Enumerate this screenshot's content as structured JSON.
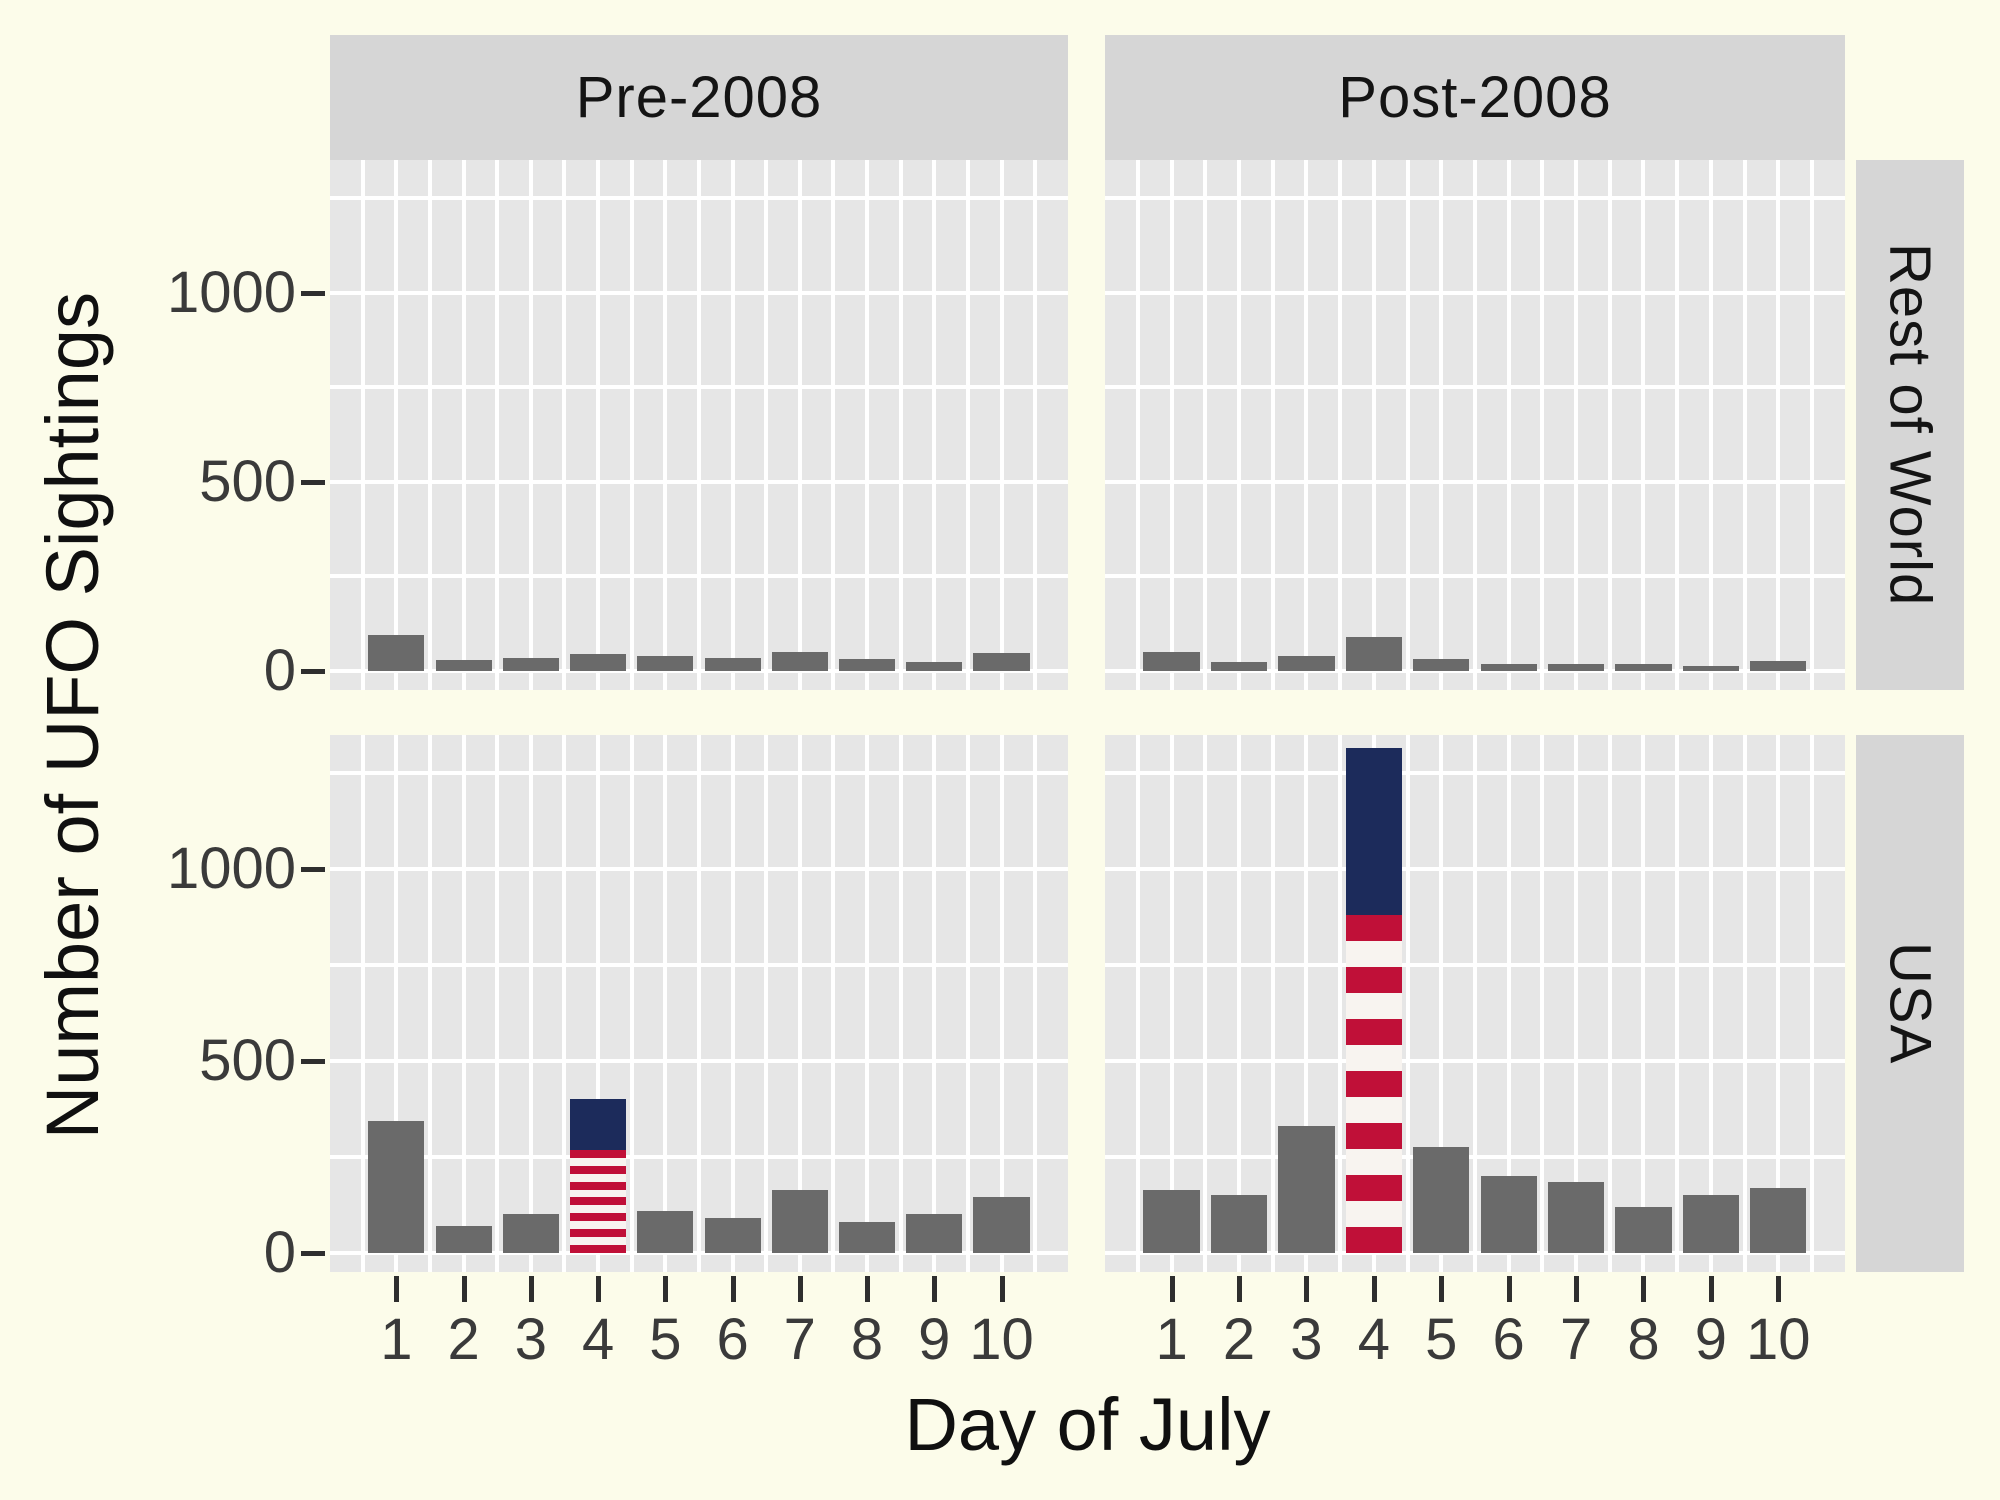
{
  "figure": {
    "background": "#FCFCEA"
  },
  "chart_data": {
    "type": "bar",
    "title": "",
    "xlabel": "Day of July",
    "ylabel": "Number of UFO Sightings",
    "x": [
      1,
      2,
      3,
      4,
      5,
      6,
      7,
      8,
      9,
      10
    ],
    "yticks": [
      0,
      500,
      1000
    ],
    "ylim": [
      -50,
      1350
    ],
    "grid": "white major and minor gridlines on gray panels",
    "legend": "none",
    "facets": {
      "cols": [
        "Pre-2008",
        "Post-2008"
      ],
      "rows": [
        "Rest of World",
        "USA"
      ]
    },
    "panels": [
      {
        "row": "Rest of World",
        "col": "Pre-2008",
        "values": [
          95,
          30,
          35,
          45,
          40,
          35,
          50,
          32,
          25,
          47
        ]
      },
      {
        "row": "Rest of World",
        "col": "Post-2008",
        "values": [
          50,
          25,
          40,
          90,
          32,
          20,
          18,
          18,
          14,
          27
        ]
      },
      {
        "row": "USA",
        "col": "Pre-2008",
        "values": [
          345,
          70,
          100,
          400,
          110,
          90,
          165,
          80,
          100,
          145
        ],
        "flag_day": 4,
        "flag_blue_fraction": 0.33
      },
      {
        "row": "USA",
        "col": "Post-2008",
        "values": [
          165,
          150,
          330,
          1315,
          275,
          200,
          185,
          120,
          150,
          170
        ],
        "flag_day": 4,
        "flag_blue_fraction": 0.33
      }
    ],
    "flag_stripes": 13,
    "colors": {
      "bar": "#6A6A6A",
      "flag_blue": "#1C2B5B",
      "flag_red": "#C01038",
      "flag_white": "#F8F4F0",
      "panel_bg": "#E6E6E6",
      "gridline": "#FFFFFF",
      "strip_bg": "#D6D6D6",
      "page_bg": "#FCFCEA",
      "tick_label": "#3A3A3A",
      "title_text": "#101010"
    }
  }
}
